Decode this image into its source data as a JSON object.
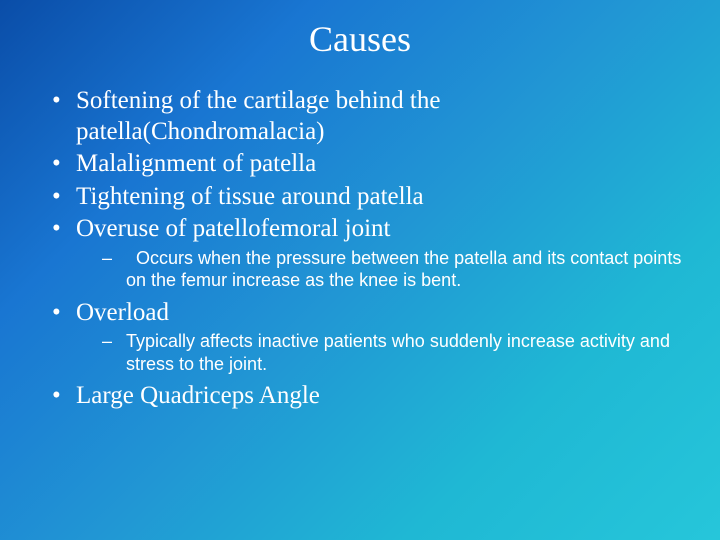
{
  "slide": {
    "title": "Causes",
    "background_colors": [
      "#0a4da8",
      "#1976d2",
      "#2196d4",
      "#1fb8d4",
      "#26c6da"
    ],
    "text_color": "#ffffff",
    "title_fontsize": 36,
    "body_fontsize": 25,
    "sub_fontsize": 18,
    "body_font": "Georgia",
    "sub_font": "Arial",
    "bullets": [
      {
        "text": "Softening of the cartilage behind the patella(Chondromalacia)",
        "sub": []
      },
      {
        "text": "Malalignment of patella",
        "sub": []
      },
      {
        "text": "Tightening of tissue around patella",
        "sub": []
      },
      {
        "text": "Overuse of patellofemoral joint",
        "sub": [
          " Occurs when the pressure between the patella and its contact points on the femur increase as the knee is bent."
        ]
      },
      {
        "text": "Overload",
        "sub": [
          "Typically affects inactive patients who suddenly increase activity and stress to the joint."
        ]
      },
      {
        "text": "Large Quadriceps Angle",
        "sub": []
      }
    ]
  }
}
